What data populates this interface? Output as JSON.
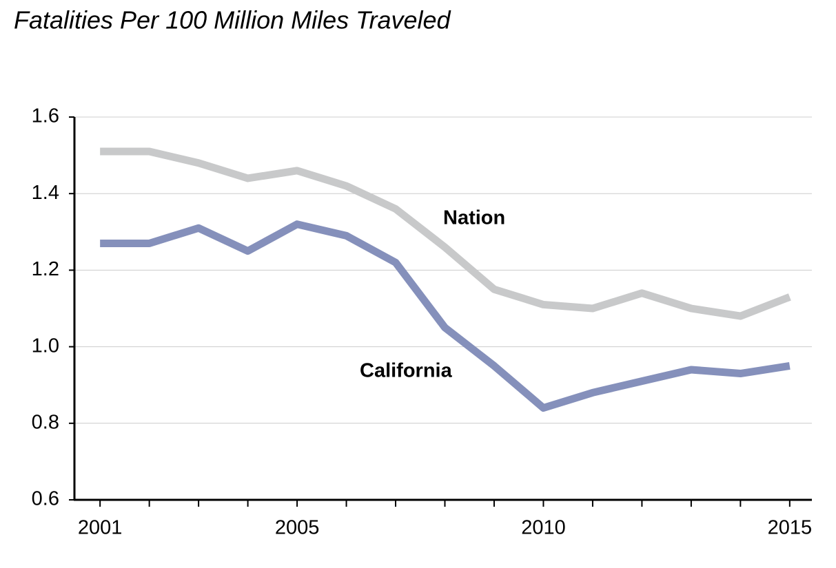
{
  "chart_data": {
    "type": "line",
    "title": "Fatalities Per 100 Million Miles Traveled",
    "x": [
      2001,
      2002,
      2003,
      2004,
      2005,
      2006,
      2007,
      2008,
      2009,
      2010,
      2011,
      2012,
      2013,
      2014,
      2015
    ],
    "series": [
      {
        "name": "Nation",
        "color": "#c8c9ca",
        "values": [
          1.51,
          1.51,
          1.48,
          1.44,
          1.46,
          1.42,
          1.36,
          1.26,
          1.15,
          1.11,
          1.1,
          1.14,
          1.1,
          1.08,
          1.13
        ]
      },
      {
        "name": "California",
        "color": "#8590bb",
        "values": [
          1.27,
          1.27,
          1.31,
          1.25,
          1.32,
          1.29,
          1.22,
          1.05,
          0.95,
          0.84,
          0.88,
          0.91,
          0.94,
          0.93,
          0.95
        ]
      }
    ],
    "xlim": [
      2000.48,
      2015.45
    ],
    "xticks": [
      2001,
      2005,
      2010,
      2015
    ],
    "ylim": [
      0.6,
      1.6
    ],
    "yticks": [
      0.6,
      0.8,
      {
        "value": 1,
        "label": "1.0"
      },
      1.2,
      1.4,
      1.6
    ],
    "grid": true
  }
}
